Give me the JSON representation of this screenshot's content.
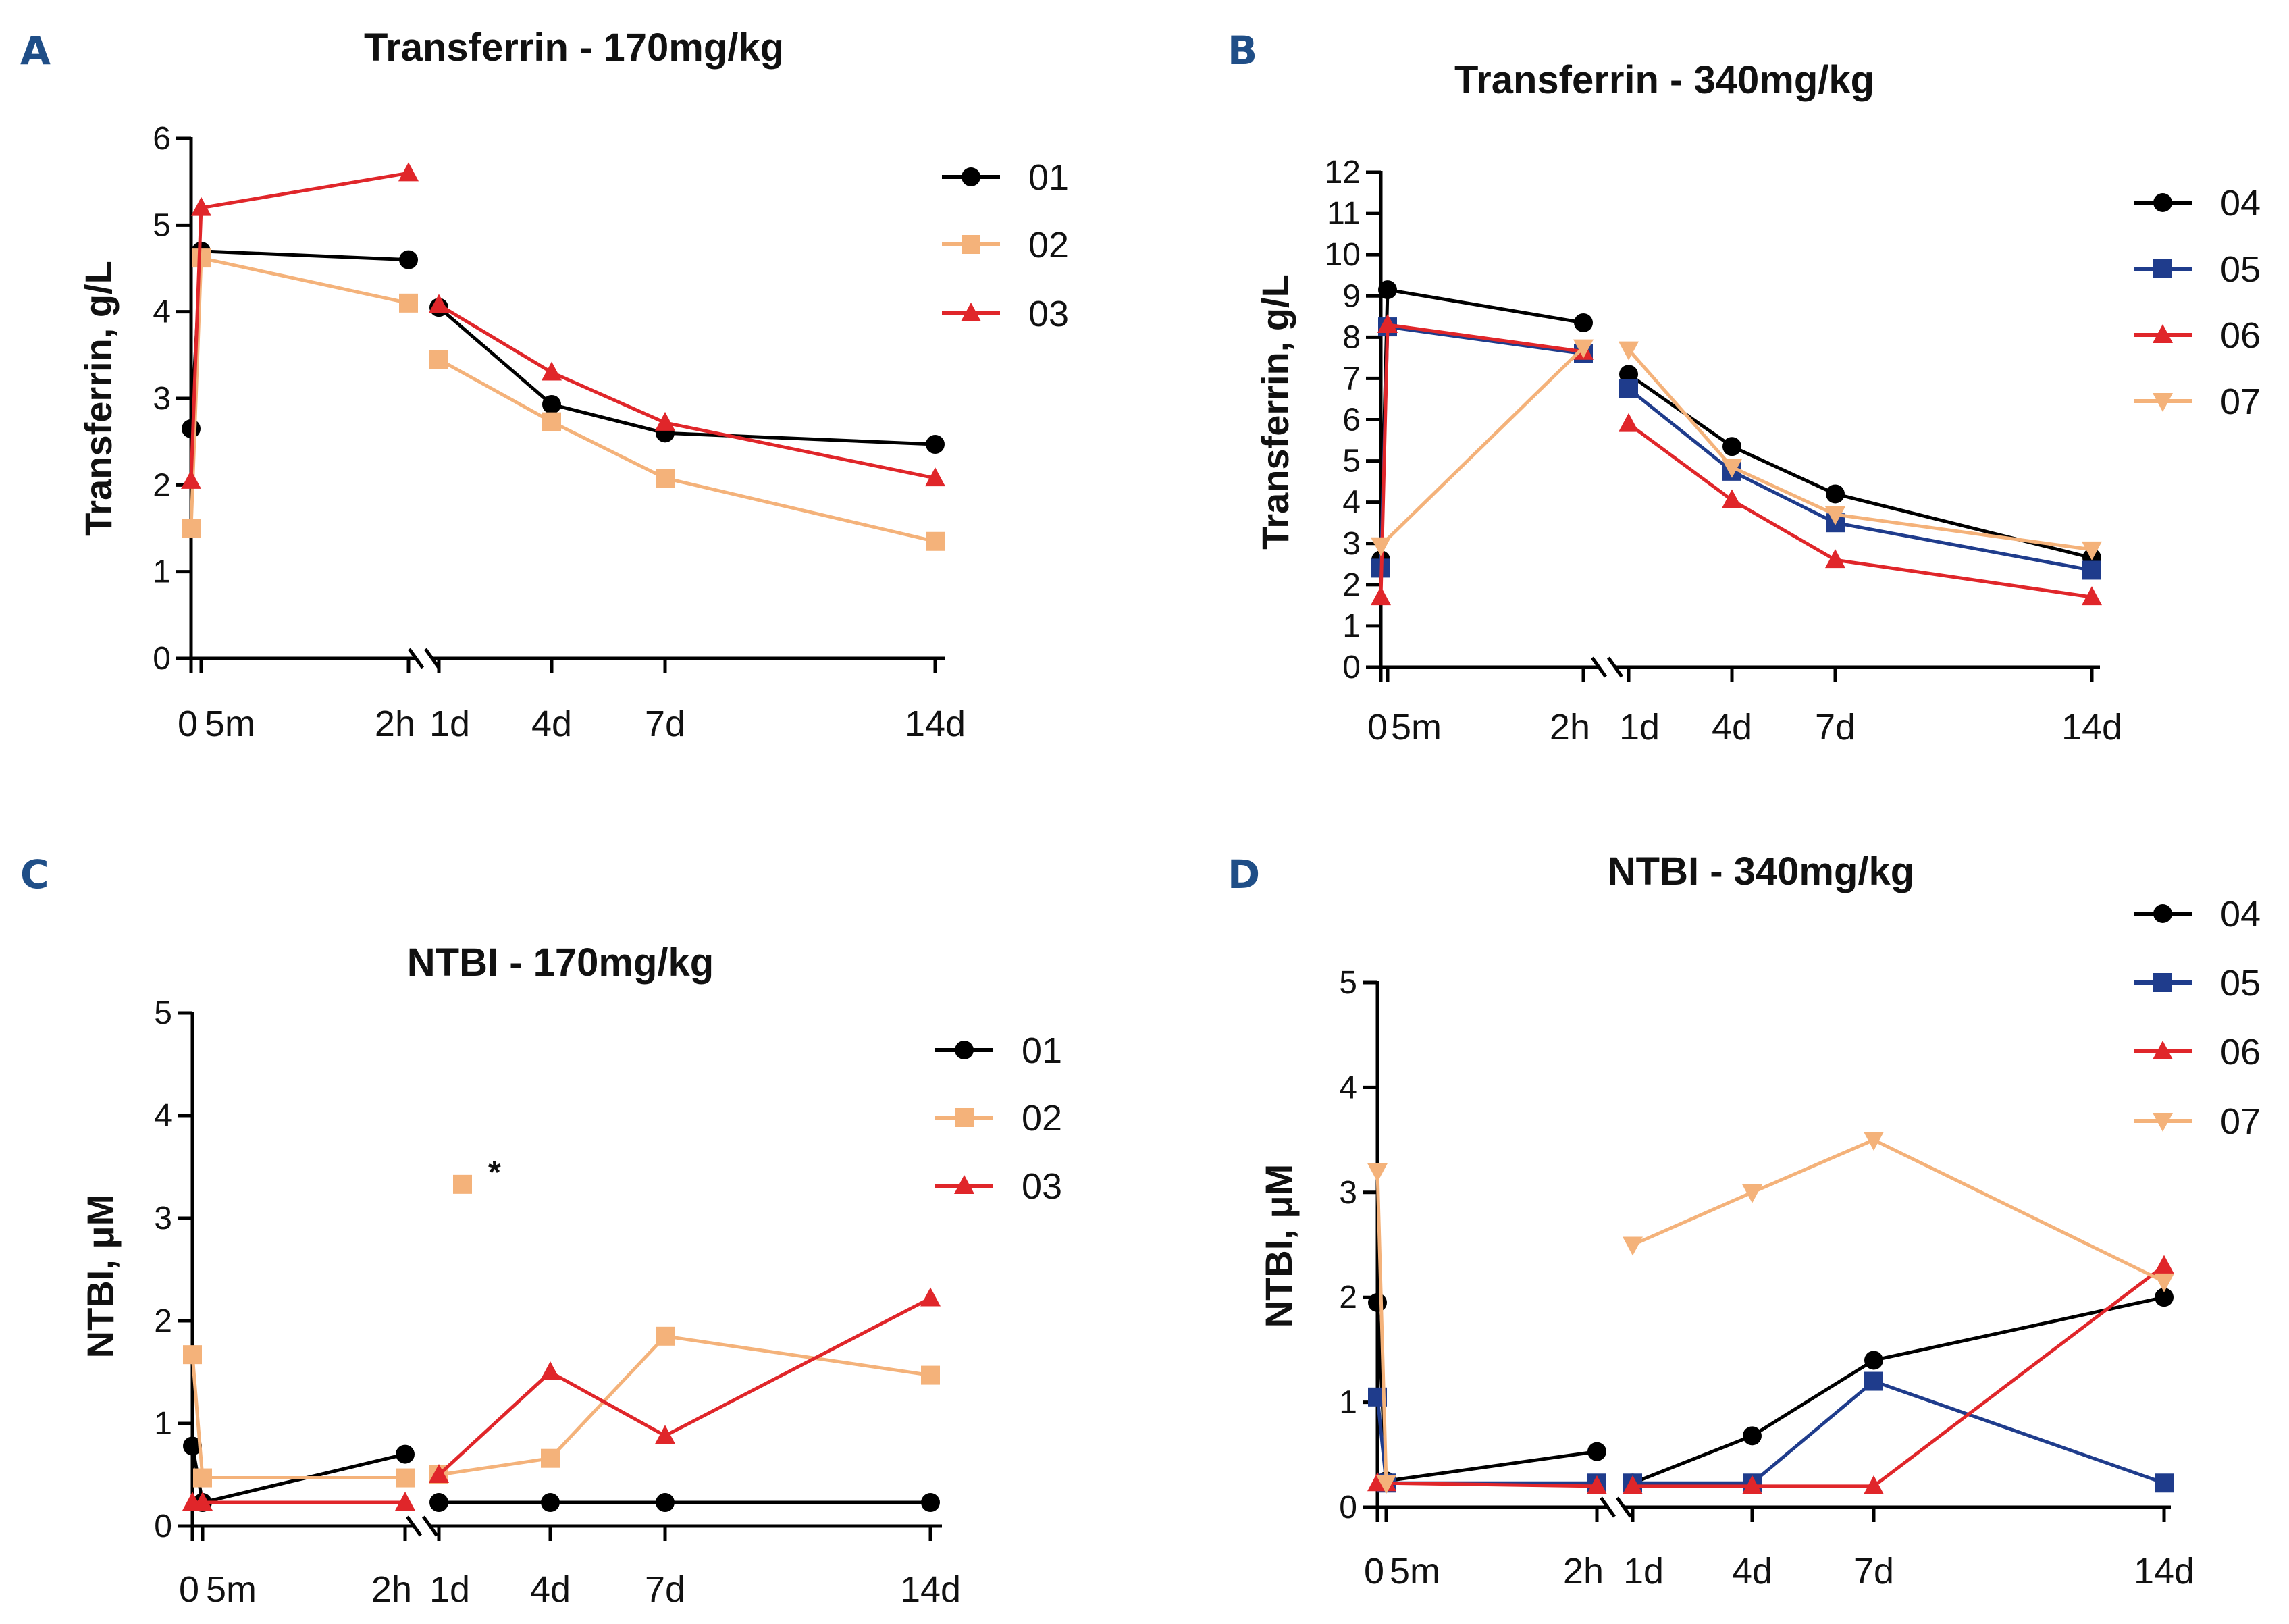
{
  "chart_data": [
    {
      "panel": "A",
      "type": "line",
      "title": "Transferrin - 170mg/kg",
      "ylabel": "Transferrin, g/L",
      "xlabel": "",
      "ylim": [
        0,
        6
      ],
      "yticks": [
        0,
        1,
        2,
        3,
        4,
        5,
        6
      ],
      "xticks": [
        "0",
        "5m",
        "2h",
        "1d",
        "4d",
        "7d",
        "14d"
      ],
      "series": [
        {
          "name": "01",
          "color": "#000000",
          "marker": "circle",
          "before": [
            {
              "x": "0",
              "y": 2.65
            },
            {
              "x": "5m",
              "y": 4.7
            },
            {
              "x": "2h",
              "y": 4.6
            }
          ],
          "after": [
            {
              "x": "1d",
              "y": 4.05
            },
            {
              "x": "4d",
              "y": 2.93
            },
            {
              "x": "7d",
              "y": 2.6
            },
            {
              "x": "14d",
              "y": 2.47
            }
          ]
        },
        {
          "name": "02",
          "color": "#f4b27a",
          "marker": "square",
          "before": [
            {
              "x": "0",
              "y": 1.5
            },
            {
              "x": "5m",
              "y": 4.62
            },
            {
              "x": "2h",
              "y": 4.1
            }
          ],
          "after": [
            {
              "x": "1d",
              "y": 3.45
            },
            {
              "x": "4d",
              "y": 2.73
            },
            {
              "x": "7d",
              "y": 2.08
            },
            {
              "x": "14d",
              "y": 1.35
            }
          ]
        },
        {
          "name": "03",
          "color": "#e0262a",
          "marker": "triangle",
          "before": [
            {
              "x": "0",
              "y": 2.05
            },
            {
              "x": "5m",
              "y": 5.2
            },
            {
              "x": "2h",
              "y": 5.6
            }
          ],
          "after": [
            {
              "x": "1d",
              "y": 4.08
            },
            {
              "x": "4d",
              "y": 3.3
            },
            {
              "x": "7d",
              "y": 2.72
            },
            {
              "x": "14d",
              "y": 2.08
            }
          ]
        }
      ]
    },
    {
      "panel": "B",
      "type": "line",
      "title": "Transferrin - 340mg/kg",
      "ylabel": "Transferrin, g/L",
      "xlabel": "",
      "ylim": [
        0,
        12
      ],
      "yticks": [
        0,
        1,
        2,
        3,
        4,
        5,
        6,
        7,
        8,
        9,
        10,
        11,
        12
      ],
      "xticks": [
        "0",
        "5m",
        "2h",
        "1d",
        "4d",
        "7d",
        "14d"
      ],
      "series": [
        {
          "name": "04",
          "color": "#000000",
          "marker": "circle",
          "before": [
            {
              "x": "0",
              "y": 2.6
            },
            {
              "x": "5m",
              "y": 9.15
            },
            {
              "x": "2h",
              "y": 8.35
            }
          ],
          "after": [
            {
              "x": "1d",
              "y": 7.1
            },
            {
              "x": "4d",
              "y": 5.35
            },
            {
              "x": "7d",
              "y": 4.2
            },
            {
              "x": "14d",
              "y": 2.65
            }
          ]
        },
        {
          "name": "05",
          "color": "#1f3c8c",
          "marker": "square",
          "before": [
            {
              "x": "0",
              "y": 2.4
            },
            {
              "x": "5m",
              "y": 8.25
            },
            {
              "x": "2h",
              "y": 7.6
            }
          ],
          "after": [
            {
              "x": "1d",
              "y": 6.75
            },
            {
              "x": "4d",
              "y": 4.75
            },
            {
              "x": "7d",
              "y": 3.5
            },
            {
              "x": "14d",
              "y": 2.35
            }
          ]
        },
        {
          "name": "06",
          "color": "#e0262a",
          "marker": "triangle",
          "before": [
            {
              "x": "0",
              "y": 1.7
            },
            {
              "x": "5m",
              "y": 8.3
            },
            {
              "x": "2h",
              "y": 7.65
            }
          ],
          "after": [
            {
              "x": "1d",
              "y": 5.9
            },
            {
              "x": "4d",
              "y": 4.05
            },
            {
              "x": "7d",
              "y": 2.6
            },
            {
              "x": "14d",
              "y": 1.7
            }
          ]
        },
        {
          "name": "07",
          "color": "#f4b27a",
          "marker": "triangle-down",
          "before": [
            {
              "x": "0",
              "y": 2.95
            },
            {
              "x": "2h",
              "y": 7.75
            }
          ],
          "after": [
            {
              "x": "1d",
              "y": 7.7
            },
            {
              "x": "4d",
              "y": 4.85
            },
            {
              "x": "7d",
              "y": 3.7
            },
            {
              "x": "14d",
              "y": 2.85
            }
          ]
        }
      ]
    },
    {
      "panel": "C",
      "type": "line",
      "title": "NTBI - 170mg/kg",
      "ylabel": "NTBI, μM",
      "xlabel": "",
      "ylim": [
        0,
        5
      ],
      "yticks": [
        0,
        1,
        2,
        3,
        4,
        5
      ],
      "xticks": [
        "0",
        "5m",
        "2h",
        "1d",
        "4d",
        "7d",
        "14d"
      ],
      "annotation": {
        "text": "*",
        "x": "1d",
        "y": 3.33,
        "series": "02"
      },
      "series": [
        {
          "name": "01",
          "color": "#000000",
          "marker": "circle",
          "before": [
            {
              "x": "0",
              "y": 0.78
            },
            {
              "x": "5m",
              "y": 0.23
            },
            {
              "x": "2h",
              "y": 0.7
            }
          ],
          "after": [
            {
              "x": "1d",
              "y": 0.23
            },
            {
              "x": "4d",
              "y": 0.23
            },
            {
              "x": "7d",
              "y": 0.23
            },
            {
              "x": "14d",
              "y": 0.23
            }
          ]
        },
        {
          "name": "02",
          "color": "#f4b27a",
          "marker": "square",
          "before": [
            {
              "x": "0",
              "y": 1.67
            },
            {
              "x": "5m",
              "y": 0.47
            },
            {
              "x": "2h",
              "y": 0.47
            }
          ],
          "after": [
            {
              "x": "1d",
              "y": 0.5
            },
            {
              "x": "4d",
              "y": 0.66
            },
            {
              "x": "7d",
              "y": 1.85
            },
            {
              "x": "14d",
              "y": 1.47
            }
          ]
        },
        {
          "name": "03",
          "color": "#e0262a",
          "marker": "triangle",
          "before": [
            {
              "x": "0",
              "y": 0.23
            },
            {
              "x": "5m",
              "y": 0.23
            },
            {
              "x": "2h",
              "y": 0.23
            }
          ],
          "after": [
            {
              "x": "1d",
              "y": 0.5
            },
            {
              "x": "4d",
              "y": 1.5
            },
            {
              "x": "7d",
              "y": 0.88
            },
            {
              "x": "14d",
              "y": 2.22
            }
          ]
        }
      ]
    },
    {
      "panel": "D",
      "type": "line",
      "title": "NTBI - 340mg/kg",
      "ylabel": "NTBI, μM",
      "xlabel": "",
      "ylim": [
        0,
        5
      ],
      "yticks": [
        0,
        1,
        2,
        3,
        4,
        5
      ],
      "xticks": [
        "0",
        "5m",
        "2h",
        "1d",
        "4d",
        "7d",
        "14d"
      ],
      "series": [
        {
          "name": "04",
          "color": "#000000",
          "marker": "circle",
          "before": [
            {
              "x": "0",
              "y": 1.95
            },
            {
              "x": "5m",
              "y": 0.25
            },
            {
              "x": "2h",
              "y": 0.53
            }
          ],
          "after": [
            {
              "x": "1d",
              "y": 0.23
            },
            {
              "x": "4d",
              "y": 0.68
            },
            {
              "x": "7d",
              "y": 1.4
            },
            {
              "x": "14d",
              "y": 2.0
            }
          ]
        },
        {
          "name": "05",
          "color": "#1f3c8c",
          "marker": "square",
          "before": [
            {
              "x": "0",
              "y": 1.05
            },
            {
              "x": "5m",
              "y": 0.23
            },
            {
              "x": "2h",
              "y": 0.23
            }
          ],
          "after": [
            {
              "x": "1d",
              "y": 0.23
            },
            {
              "x": "4d",
              "y": 0.23
            },
            {
              "x": "7d",
              "y": 1.2
            },
            {
              "x": "14d",
              "y": 0.23
            }
          ]
        },
        {
          "name": "06",
          "color": "#e0262a",
          "marker": "triangle",
          "before": [
            {
              "x": "0",
              "y": 0.23
            },
            {
              "x": "5m",
              "y": 0.23
            },
            {
              "x": "2h",
              "y": 0.2
            }
          ],
          "after": [
            {
              "x": "1d",
              "y": 0.2
            },
            {
              "x": "4d",
              "y": 0.2
            },
            {
              "x": "7d",
              "y": 0.2
            },
            {
              "x": "14d",
              "y": 2.3
            }
          ]
        },
        {
          "name": "07",
          "color": "#f4b27a",
          "marker": "triangle-down",
          "before": [
            {
              "x": "0",
              "y": 3.2
            },
            {
              "x": "5m",
              "y": 0.23
            }
          ],
          "after": [
            {
              "x": "1d",
              "y": 2.5
            },
            {
              "x": "4d",
              "y": 3.0
            },
            {
              "x": "7d",
              "y": 3.5
            },
            {
              "x": "14d",
              "y": 2.15
            }
          ]
        }
      ]
    }
  ]
}
